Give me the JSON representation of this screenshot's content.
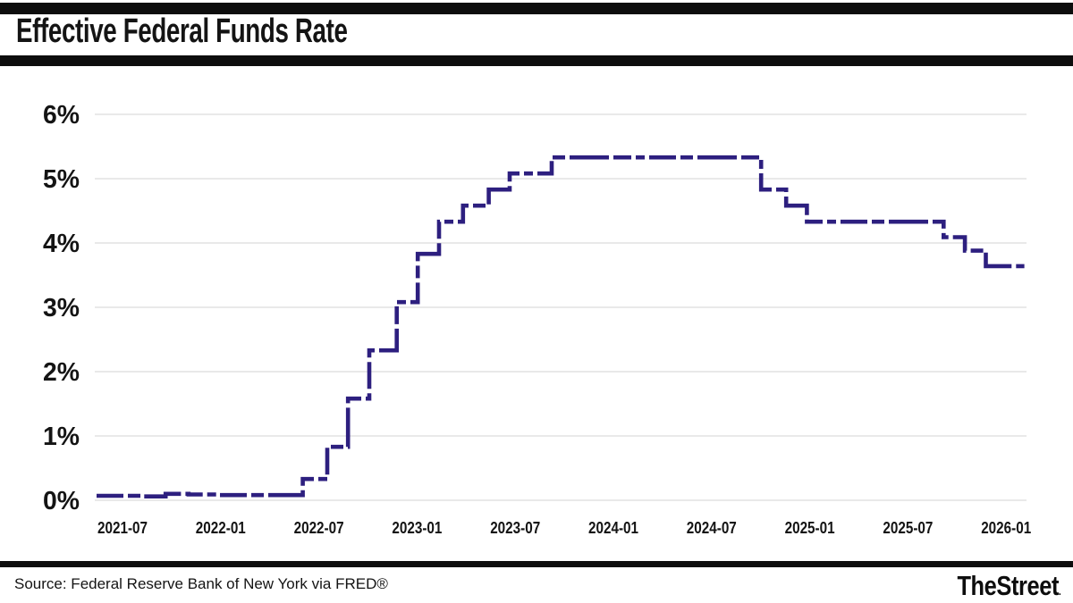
{
  "header": {
    "title": "Effective Federal Funds Rate"
  },
  "footer": {
    "source": "Source: Federal Reserve Bank of New York via FRED®",
    "brand": "TheStreet",
    "brand_mark": "."
  },
  "chart_data": {
    "type": "line",
    "line_style": "step-after, dashed",
    "title": "Effective Federal Funds Rate",
    "xlabel": "",
    "ylabel": "",
    "unit": "%",
    "ylim": [
      0,
      6
    ],
    "grid": "horizontal",
    "legend": "none",
    "colors": {
      "line": "#2d1f7f",
      "grid": "#dcdcdc",
      "text": "#141414",
      "rule": "#0d0d0d",
      "background": "#ffffff"
    },
    "y_ticks": [
      "0%",
      "1%",
      "2%",
      "3%",
      "4%",
      "5%",
      "6%"
    ],
    "x_ticks": [
      "2021-07",
      "2022-01",
      "2022-07",
      "2023-01",
      "2023-07",
      "2024-01",
      "2024-07",
      "2025-01",
      "2025-07",
      "2026-01"
    ],
    "series": [
      {
        "name": "Effective Federal Funds Rate (percent)",
        "points": [
          {
            "date": "2021-02-01",
            "value": 0.07
          },
          {
            "date": "2021-05-03",
            "value": 0.06
          },
          {
            "date": "2021-06-17",
            "value": 0.1
          },
          {
            "date": "2021-08-02",
            "value": 0.09
          },
          {
            "date": "2021-10-01",
            "value": 0.08
          },
          {
            "date": "2022-03-17",
            "value": 0.33
          },
          {
            "date": "2022-05-05",
            "value": 0.83
          },
          {
            "date": "2022-06-16",
            "value": 1.58
          },
          {
            "date": "2022-07-28",
            "value": 2.33
          },
          {
            "date": "2022-09-22",
            "value": 3.08
          },
          {
            "date": "2022-11-03",
            "value": 3.83
          },
          {
            "date": "2022-12-15",
            "value": 4.33
          },
          {
            "date": "2023-02-02",
            "value": 4.58
          },
          {
            "date": "2023-03-23",
            "value": 4.83
          },
          {
            "date": "2023-05-04",
            "value": 5.08
          },
          {
            "date": "2023-07-27",
            "value": 5.33
          },
          {
            "date": "2024-09-19",
            "value": 4.83
          },
          {
            "date": "2024-11-08",
            "value": 4.58
          },
          {
            "date": "2024-12-19",
            "value": 4.33
          },
          {
            "date": "2025-09-18",
            "value": 4.09
          },
          {
            "date": "2025-10-30",
            "value": 3.88
          },
          {
            "date": "2025-12-11",
            "value": 3.64
          },
          {
            "date": "2026-02-27",
            "value": 3.64
          }
        ]
      }
    ]
  }
}
